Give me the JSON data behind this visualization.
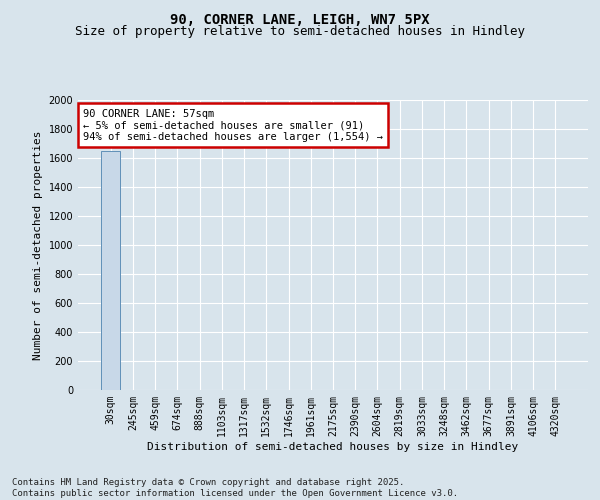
{
  "title_line1": "90, CORNER LANE, LEIGH, WN7 5PX",
  "title_line2": "Size of property relative to semi-detached houses in Hindley",
  "xlabel": "Distribution of semi-detached houses by size in Hindley",
  "ylabel": "Number of semi-detached properties",
  "categories": [
    "30sqm",
    "245sqm",
    "459sqm",
    "674sqm",
    "888sqm",
    "1103sqm",
    "1317sqm",
    "1532sqm",
    "1746sqm",
    "1961sqm",
    "2175sqm",
    "2390sqm",
    "2604sqm",
    "2819sqm",
    "3033sqm",
    "3248sqm",
    "3462sqm",
    "3677sqm",
    "3891sqm",
    "4106sqm",
    "4320sqm"
  ],
  "values": [
    1645,
    0,
    0,
    0,
    0,
    0,
    0,
    0,
    0,
    0,
    0,
    0,
    0,
    0,
    0,
    0,
    0,
    0,
    0,
    0,
    0
  ],
  "bar_color": "#c8d8e8",
  "bar_edge_color": "#6090b8",
  "annotation_text": "90 CORNER LANE: 57sqm\n← 5% of semi-detached houses are smaller (91)\n94% of semi-detached houses are larger (1,554) →",
  "annotation_box_color": "#ffffff",
  "annotation_box_edge_color": "#cc0000",
  "ylim": [
    0,
    2000
  ],
  "yticks": [
    0,
    200,
    400,
    600,
    800,
    1000,
    1200,
    1400,
    1600,
    1800,
    2000
  ],
  "background_color": "#d8e4ec",
  "plot_bg_color": "#d8e4ec",
  "grid_color": "#ffffff",
  "footer_text": "Contains HM Land Registry data © Crown copyright and database right 2025.\nContains public sector information licensed under the Open Government Licence v3.0.",
  "title_fontsize": 10,
  "subtitle_fontsize": 9,
  "axis_label_fontsize": 8,
  "tick_fontsize": 7,
  "annotation_fontsize": 7.5,
  "footer_fontsize": 6.5
}
